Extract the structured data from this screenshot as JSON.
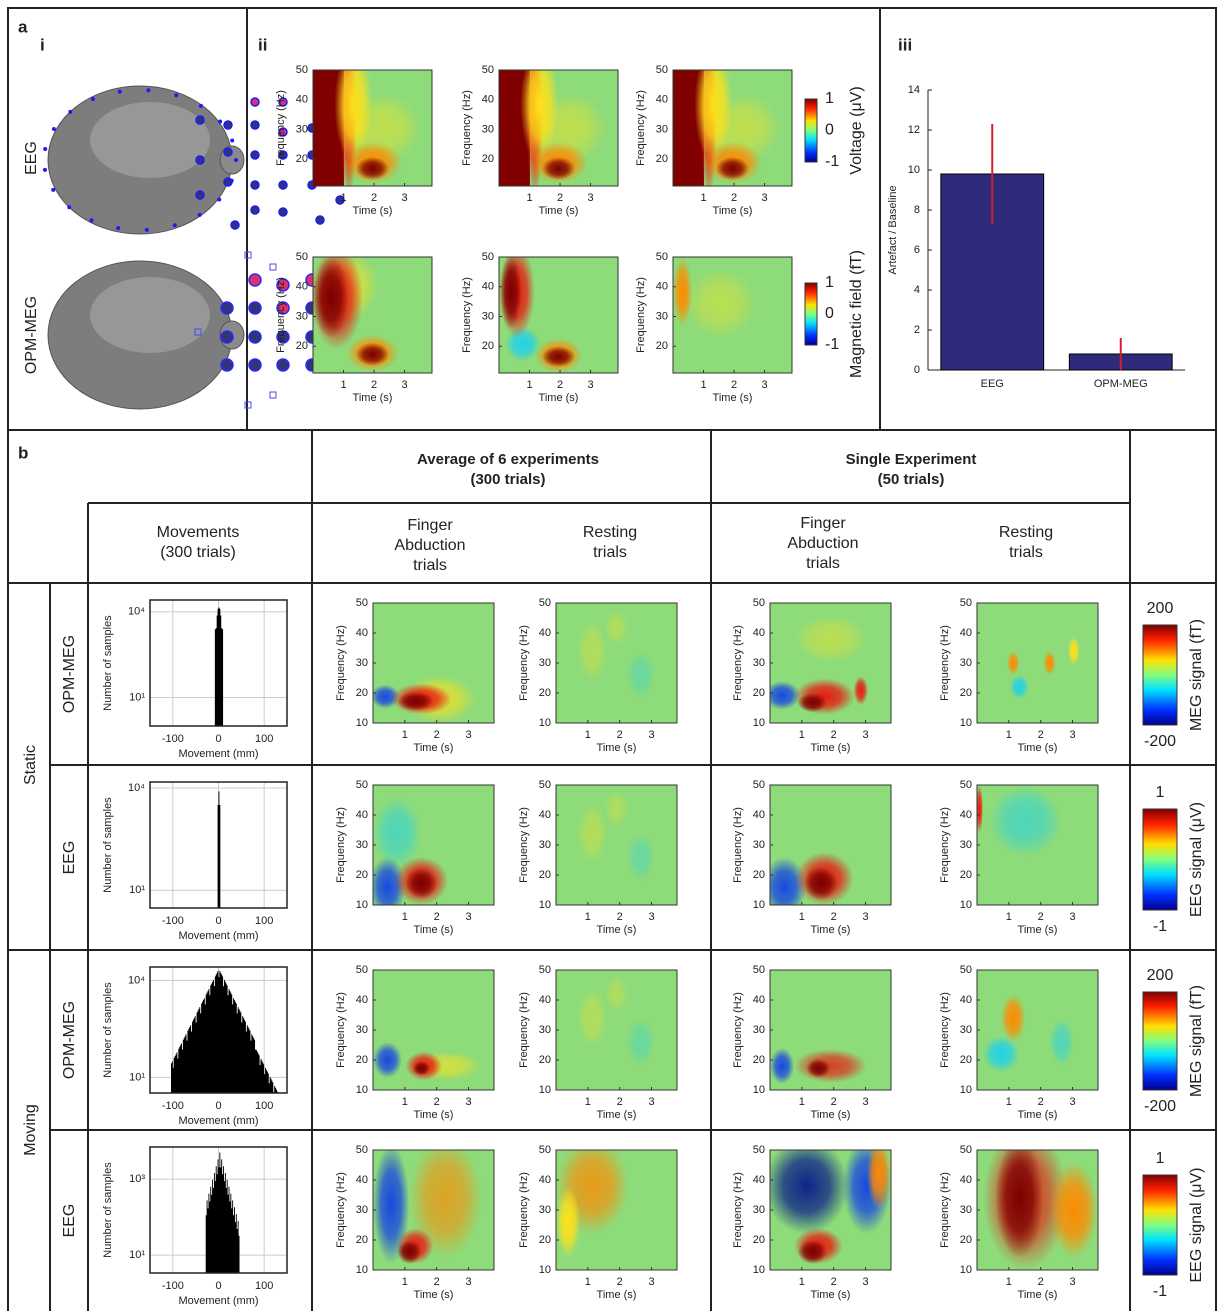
{
  "figure": {
    "panel_a": {
      "label": "a",
      "sub_labels": [
        "i",
        "ii",
        "iii"
      ],
      "head_labels": [
        "EEG",
        "OPM-MEG"
      ],
      "tf": {
        "ylabel": "Frequency (Hz)",
        "xlabel": "Time (s)",
        "ylim": [
          11,
          50
        ],
        "xlim": [
          0,
          3.9
        ],
        "yticks": [
          20,
          30,
          40,
          50
        ],
        "xticks": [
          1,
          2,
          3
        ]
      },
      "colorbars": [
        {
          "label": "Voltage (μV)",
          "ticks": [
            1,
            0,
            -1
          ]
        },
        {
          "label": "Magnetic field (fT)",
          "ticks": [
            1,
            0,
            -1
          ]
        }
      ]
    },
    "panel_b": {
      "label": "b",
      "group_headers": [
        [
          "Average of 6 experiments",
          "(300 trials)"
        ],
        [
          "Single Experiment",
          "(50 trials)"
        ]
      ],
      "column_headers": [
        [
          "Movements",
          "(300 trials)"
        ],
        [
          "Finger",
          "Abduction",
          "trials"
        ],
        [
          "Resting",
          "trials"
        ],
        [
          "Finger",
          "Abduction",
          "trials"
        ],
        [
          "Resting",
          "trials"
        ]
      ],
      "conditions": [
        "Static",
        "Moving"
      ],
      "modalities": [
        "OPM-MEG",
        "EEG",
        "OPM-MEG",
        "EEG"
      ],
      "histogram": {
        "ylabel": "Number of samples",
        "xlabel": "Movement (mm)",
        "xlim": [
          -150,
          150
        ],
        "xticks": [
          -100,
          0,
          100
        ],
        "rows": [
          {
            "ylim": [
              1,
              26000
            ],
            "yticks": [
              {
                "value": 10,
                "label": "10¹"
              },
              {
                "value": 10000,
                "label": "10⁴"
              }
            ]
          },
          {
            "ylim": [
              3,
              15000
            ],
            "yticks": [
              {
                "value": 10,
                "label": "10¹"
              },
              {
                "value": 10000,
                "label": "10⁴"
              }
            ]
          },
          {
            "ylim": [
              3.3,
              26000
            ],
            "yticks": [
              {
                "value": 10,
                "label": "10¹"
              },
              {
                "value": 10000,
                "label": "10⁴"
              }
            ]
          },
          {
            "ylim": [
              3.4,
              7000
            ],
            "yticks": [
              {
                "value": 10,
                "label": "10¹"
              },
              {
                "value": 1000,
                "label": "10³"
              }
            ]
          }
        ]
      },
      "tf": {
        "ylabel": "Frequency (Hz)",
        "xlabel": "Time (s)",
        "ylim": [
          10,
          50
        ],
        "xlim": [
          0,
          3.8
        ],
        "yticks": [
          10,
          20,
          30,
          40,
          50
        ],
        "xticks": [
          1,
          2,
          3
        ]
      },
      "colorbars": [
        {
          "label": "MEG signal (fT)",
          "ticks": [
            200,
            -200
          ]
        },
        {
          "label": "EEG signal (μV)",
          "ticks": [
            1,
            -1
          ]
        },
        {
          "label": "MEG signal (fT)",
          "ticks": [
            200,
            -200
          ]
        },
        {
          "label": "EEG signal (μV)",
          "ticks": [
            1,
            -1
          ]
        }
      ]
    }
  },
  "chart_data": {
    "type": "bar",
    "ylabel": "Artefact / Baseline",
    "categories": [
      "EEG",
      "OPM-MEG"
    ],
    "values": [
      9.8,
      0.8
    ],
    "errors": [
      2.5,
      0.8
    ],
    "color": "#2e2a7c",
    "error_color": "#d0202a",
    "ylim": [
      0,
      14
    ],
    "yticks": [
      0,
      2,
      4,
      6,
      8,
      10,
      12,
      14
    ]
  }
}
